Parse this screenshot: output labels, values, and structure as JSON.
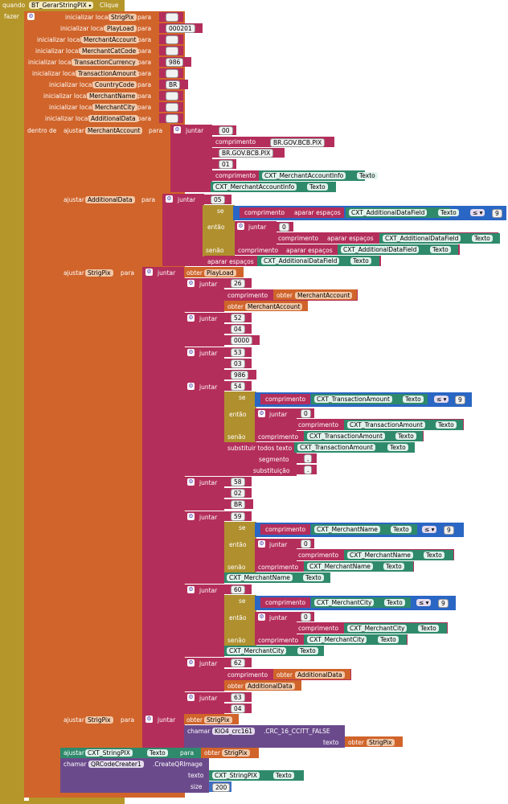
{
  "event": {
    "quando": "quando",
    "component": "BT_GerarStringPIX",
    "clique": "Clique",
    "fazer": "fazer"
  },
  "kw": {
    "init_local": "inicializar local",
    "para": "para",
    "dentro_de": "dentro de",
    "ajustar": "ajustar",
    "juntar": "juntar",
    "comprimento": "comprimento",
    "obter": "obter",
    "se": "se",
    "entao": "então",
    "senao": "senão",
    "aparar": "aparar espaços",
    "texto": "Texto",
    "chamar": "chamar",
    "substituir": "substituir todos texto",
    "segmento": "segmento",
    "substituicao": "substituição",
    "text_param": "texto",
    "size_param": "size",
    "le": "≤ ▾"
  },
  "locals": [
    {
      "name": "StrigPix",
      "value": ""
    },
    {
      "name": "PlayLoad",
      "value": "000201"
    },
    {
      "name": "MerchantAccount",
      "value": ""
    },
    {
      "name": "MerchantCatCode",
      "value": ""
    },
    {
      "name": "TransactionCurrency",
      "value": "986"
    },
    {
      "name": "TransactionAmount",
      "value": ""
    },
    {
      "name": "CountryCode",
      "value": "BR"
    },
    {
      "name": "MerchantName",
      "value": ""
    },
    {
      "name": "MerchantCity",
      "value": ""
    },
    {
      "name": "AdditionalData",
      "value": ""
    }
  ],
  "merchant_account": {
    "tag": "00",
    "gui": "BR.GOV.BCB.PIX",
    "gui2": "BR.GOV.BCB.PIX",
    "sub": "01",
    "field": "CXT_MerchantAccountInfo"
  },
  "additional": {
    "tag": "05",
    "field": "CXT_AdditionalDataField",
    "max": "9",
    "zero": "0"
  },
  "strigpix": {
    "t26": "26",
    "t52": "52",
    "t04a": "04",
    "t0000": "0000",
    "t53": "53",
    "t03": "03",
    "t986": "986",
    "t54": "54",
    "amount_field": "CXT_TransactionAmount",
    "max9": "9",
    "zero": "0",
    "seg": ",",
    "subst": ".",
    "t58": "58",
    "t02": "02",
    "tBR": "BR",
    "t59": "59",
    "name_field": "CXT_MerchantName",
    "t60": "60",
    "city_field": "CXT_MerchantCity",
    "t62": "62",
    "t63": "63",
    "t04b": "04"
  },
  "crc": {
    "component": "KIO4_crc161",
    "method": ".CRC_16_CCITT_FALSE"
  },
  "output": {
    "field": "CXT_StringPIX",
    "qr": "QRCodeCreater1",
    "qr_method": ".CreateQRImage",
    "size": "200"
  }
}
